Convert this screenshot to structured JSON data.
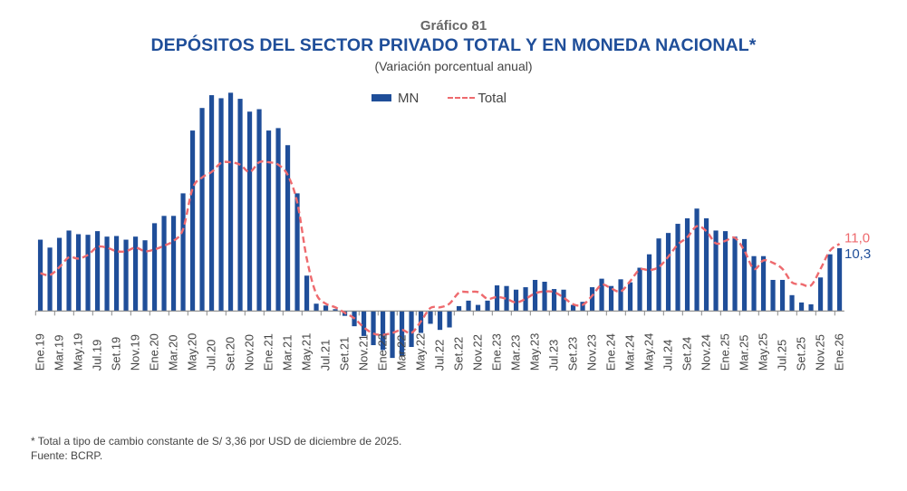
{
  "header": {
    "figure_number": "Gráfico 81",
    "title": "DEPÓSITOS DEL SECTOR PRIVADO TOTAL Y EN MONEDA NACIONAL*",
    "subtitle": "(Variación porcentual anual)"
  },
  "legend": {
    "mn_label": "MN",
    "total_label": "Total"
  },
  "footer": {
    "note": "* Total a tipo de cambio constante de S/ 3,36 por USD de diciembre de 2025.",
    "source": "Fuente: BCRP."
  },
  "colors": {
    "mn": "#1F4E99",
    "total": "#EE6A6E",
    "axis": "#888888",
    "title": "#1F4E99"
  },
  "chart_data": {
    "type": "bar",
    "title": "DEPÓSITOS DEL SECTOR PRIVADO TOTAL Y EN MONEDA NACIONAL*",
    "subtitle": "(Variación porcentual anual)",
    "xlabel": "",
    "ylabel": "",
    "ylim": [
      -8,
      37
    ],
    "grid": false,
    "legend_position": "top-center",
    "tick_labels": [
      "Ene.19",
      "Mar.19",
      "May.19",
      "Jul.19",
      "Set.19",
      "Nov.19",
      "Ene.20",
      "Mar.20",
      "May.20",
      "Jul.20",
      "Set.20",
      "Nov.20",
      "Ene.21",
      "Mar.21",
      "May.21",
      "Jul.21",
      "Set.21",
      "Nov.21",
      "Ene.22",
      "Mar.22",
      "May.22",
      "Jul.22",
      "Set.22",
      "Nov.22",
      "Ene.23",
      "Mar.23",
      "May.23",
      "Jul.23",
      "Set.23",
      "Nov.23",
      "Ene.24",
      "Mar.24",
      "May.24",
      "Jul.24",
      "Set.24",
      "Nov.24",
      "Ene.25",
      "Mar.25",
      "May.25",
      "Jul.25",
      "Set.25",
      "Nov.25",
      "Ene.26"
    ],
    "categories": [
      "Ene.19",
      "Feb.19",
      "Mar.19",
      "Abr.19",
      "May.19",
      "Jun.19",
      "Jul.19",
      "Ago.19",
      "Set.19",
      "Oct.19",
      "Nov.19",
      "Dic.19",
      "Ene.20",
      "Feb.20",
      "Mar.20",
      "Abr.20",
      "May.20",
      "Jun.20",
      "Jul.20",
      "Ago.20",
      "Set.20",
      "Oct.20",
      "Nov.20",
      "Dic.20",
      "Ene.21",
      "Feb.21",
      "Mar.21",
      "Abr.21",
      "May.21",
      "Jun.21",
      "Jul.21",
      "Ago.21",
      "Set.21",
      "Oct.21",
      "Nov.21",
      "Dic.21",
      "Ene.22",
      "Feb.22",
      "Mar.22",
      "Abr.22",
      "May.22",
      "Jun.22",
      "Jul.22",
      "Ago.22",
      "Set.22",
      "Oct.22",
      "Nov.22",
      "Dic.22",
      "Ene.23",
      "Feb.23",
      "Mar.23",
      "Abr.23",
      "May.23",
      "Jun.23",
      "Jul.23",
      "Ago.23",
      "Set.23",
      "Oct.23",
      "Nov.23",
      "Dic.23",
      "Ene.24",
      "Feb.24",
      "Mar.24",
      "Abr.24",
      "May.24",
      "Jun.24",
      "Jul.24",
      "Ago.24",
      "Set.24",
      "Oct.24",
      "Nov.24",
      "Dic.24",
      "Ene.25",
      "Feb.25",
      "Mar.25",
      "Abr.25",
      "May.25",
      "Jun.25",
      "Jul.25",
      "Ago.25",
      "Set.25",
      "Oct.25",
      "Nov.25",
      "Dic.25",
      "Ene.26"
    ],
    "series": [
      {
        "name": "MN",
        "type": "bar",
        "values": [
          11.7,
          10.4,
          12.0,
          13.2,
          12.6,
          12.5,
          13.1,
          12.2,
          12.3,
          11.7,
          12.2,
          11.6,
          14.4,
          15.6,
          15.6,
          19.3,
          29.6,
          33.3,
          35.4,
          34.9,
          35.8,
          34.8,
          32.7,
          33.1,
          29.6,
          30.0,
          27.2,
          19.3,
          5.8,
          1.2,
          0.9,
          0.3,
          -0.8,
          -2.5,
          -4.1,
          -5.6,
          -6.4,
          -7.7,
          -7.4,
          -5.9,
          -3.6,
          -2.1,
          -3.1,
          -2.7,
          0.8,
          1.7,
          1.0,
          1.7,
          4.2,
          4.1,
          3.5,
          3.9,
          5.1,
          4.8,
          3.6,
          3.5,
          1.0,
          1.5,
          3.9,
          5.3,
          4.1,
          5.2,
          4.7,
          7.1,
          9.3,
          11.9,
          12.8,
          14.3,
          15.2,
          16.8,
          15.2,
          13.2,
          13.1,
          12.2,
          11.8,
          9.0,
          9.0,
          5.1,
          5.1,
          2.6,
          1.4,
          1.1,
          5.5,
          9.3,
          10.3
        ]
      },
      {
        "name": "Total",
        "type": "line",
        "style": "dashed",
        "values": [
          6.2,
          5.9,
          7.2,
          8.8,
          8.6,
          9.2,
          10.5,
          10.4,
          9.8,
          9.8,
          10.4,
          9.8,
          10.1,
          10.7,
          11.5,
          13.4,
          20.1,
          21.9,
          22.8,
          24.3,
          24.4,
          24.0,
          22.8,
          24.4,
          24.4,
          24.0,
          22.3,
          17.8,
          8.6,
          2.8,
          1.2,
          0.6,
          -0.3,
          -1.2,
          -2.7,
          -3.7,
          -3.9,
          -3.6,
          -3.1,
          -3.6,
          -1.7,
          0.5,
          0.6,
          1.2,
          3.0,
          3.1,
          3.1,
          2.0,
          2.3,
          2.0,
          1.4,
          2.0,
          2.9,
          3.2,
          3.1,
          2.2,
          1.1,
          1.0,
          2.5,
          4.3,
          3.7,
          3.2,
          4.9,
          6.8,
          6.7,
          7.2,
          8.9,
          10.9,
          12.1,
          13.9,
          13.1,
          11.1,
          11.5,
          12.0,
          9.9,
          6.9,
          8.3,
          7.9,
          6.9,
          4.7,
          4.4,
          4.2,
          6.9,
          9.9,
          11.0
        ]
      }
    ],
    "end_labels": {
      "total": "11,0",
      "mn": "10,3"
    }
  }
}
